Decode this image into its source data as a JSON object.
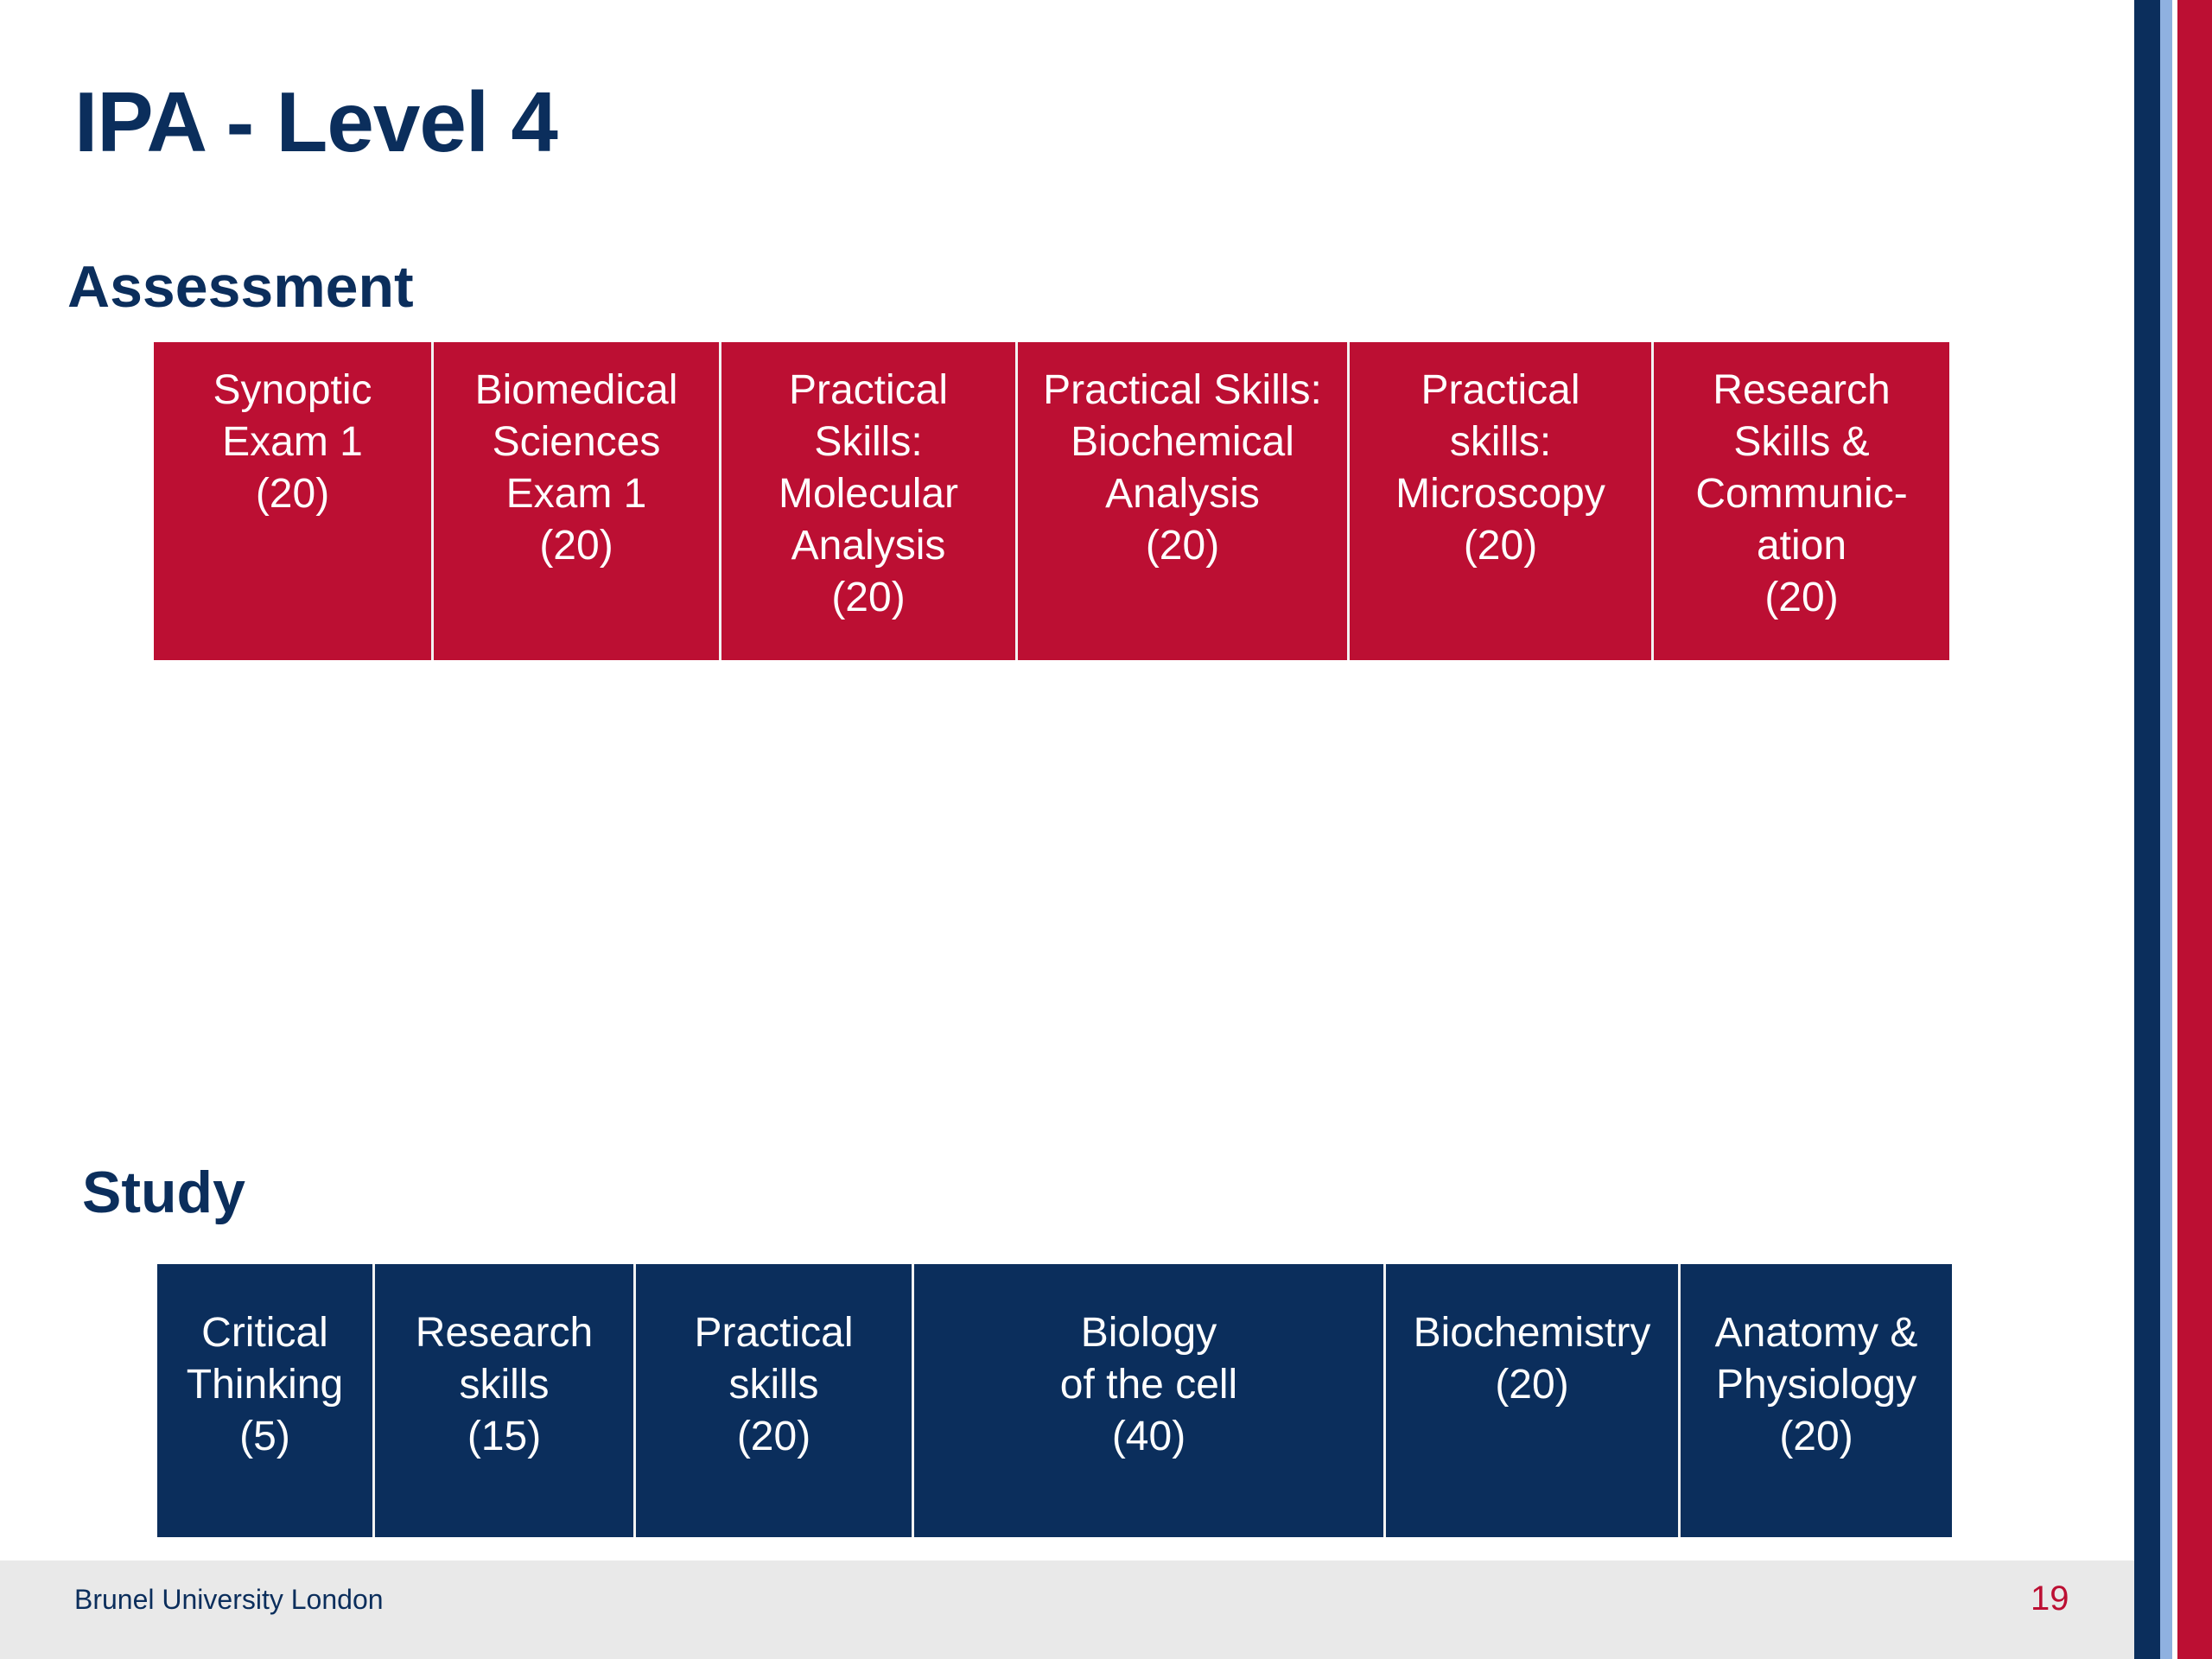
{
  "title": "IPA - Level 4",
  "assessment": {
    "heading": "Assessment",
    "items": [
      {
        "label": "Synoptic\nExam 1\n(20)"
      },
      {
        "label": "Biomedical\nSciences\nExam 1\n (20)"
      },
      {
        "label": "Practical\nSkills:\nMolecular\nAnalysis\n(20)"
      },
      {
        "label": "Practical Skills:\nBiochemical\nAnalysis\n(20)"
      },
      {
        "label": "Practical\nskills:\nMicroscopy\n(20)"
      },
      {
        "label": "Research\nSkills &\nCommunic-\nation\n(20)"
      }
    ]
  },
  "study": {
    "heading": "Study",
    "items": [
      {
        "label": "Critical\nThinking\n(5)"
      },
      {
        "label": "Research\nskills\n (15)"
      },
      {
        "label": "Practical\nskills\n (20)"
      },
      {
        "label": "Biology\nof the cell\n(40)"
      },
      {
        "label": "Biochemistry\n(20)"
      },
      {
        "label": "Anatomy  &\nPhysiology\n(20)"
      }
    ]
  },
  "footer": {
    "brand": "Brunel University London",
    "page_number": "19"
  },
  "colors": {
    "navy": "#0b2e5c",
    "crimson": "#bc0f33",
    "light_blue": "#8fb1e0",
    "footer_gray": "#e9e9e9"
  }
}
